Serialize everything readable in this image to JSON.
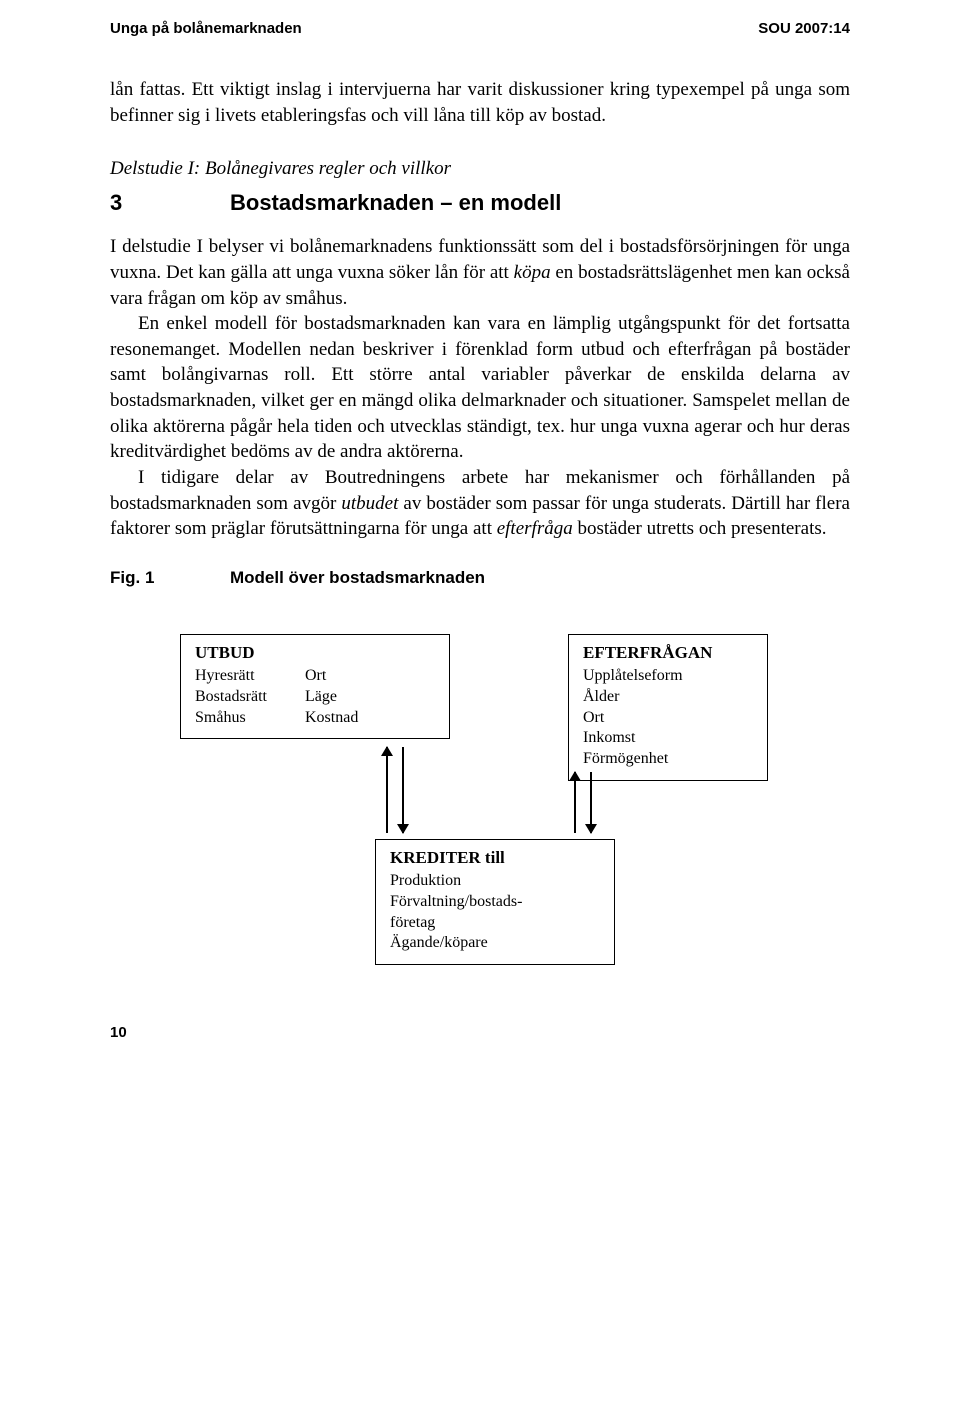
{
  "header": {
    "left": "Unga på bolånemarknaden",
    "right": "SOU 2007:14"
  },
  "intro": "lån fattas. Ett viktigt inslag i intervjuerna har varit diskussioner kring typexempel på unga som befinner sig i livets etableringsfas och vill låna till köp av bostad.",
  "delstudie": "Delstudie I: Bolånegivares regler och villkor",
  "section": {
    "num": "3",
    "title": "Bostadsmarknaden – en modell"
  },
  "body": {
    "p1_a": "I delstudie I belyser vi bolånemarknadens funktionssätt som del i bostadsförsörjningen för unga vuxna. Det kan gälla att unga vuxna söker lån för att ",
    "p1_i": "köpa",
    "p1_b": " en bostadsrättslägenhet men kan också vara frågan om köp av småhus.",
    "p2": "En enkel modell för bostadsmarknaden kan vara en lämplig utgångspunkt för det fortsatta resonemanget. Modellen nedan beskriver i förenklad form utbud och efterfrågan på bostäder samt bolångivarnas roll. Ett större antal variabler påverkar de enskilda delarna av bostadsmarknaden, vilket ger en mängd olika del­marknader och situationer. Samspelet mellan de olika aktörerna pågår hela tiden och utvecklas ständigt, tex. hur unga vuxna agerar och hur deras kreditvärdighet bedöms av de andra aktörerna.",
    "p3_a": "I tidigare delar av Boutredningens arbete har mekanismer och förhållanden på bostadsmarknaden som avgör ",
    "p3_i1": "utbudet",
    "p3_b": " av bostäder som passar för unga studerats. Därtill har flera faktorer som präglar förutsättningarna för unga att ",
    "p3_i2": "efterfråga",
    "p3_c": " bostäder utretts och pre­senterats."
  },
  "figure": {
    "label": "Fig. 1",
    "title": "Modell över bostadsmarknaden"
  },
  "diagram": {
    "utbud": {
      "title": "UTBUD",
      "col1": [
        "Hyresrätt",
        "Bostadsrätt",
        "Småhus"
      ],
      "col2": [
        "Ort",
        "Läge",
        "Kostnad"
      ]
    },
    "efterfragan": {
      "title": "EFTERFRÅGAN",
      "items": [
        "Upplåtelseform",
        "Ålder",
        "Ort",
        "Inkomst",
        "Förmögenhet"
      ]
    },
    "krediter": {
      "title": "KREDITER till",
      "items": [
        "Produktion",
        "Förvaltning/bostads-",
        "företag",
        "Ägande/köpare"
      ]
    }
  },
  "pagenum": "10"
}
